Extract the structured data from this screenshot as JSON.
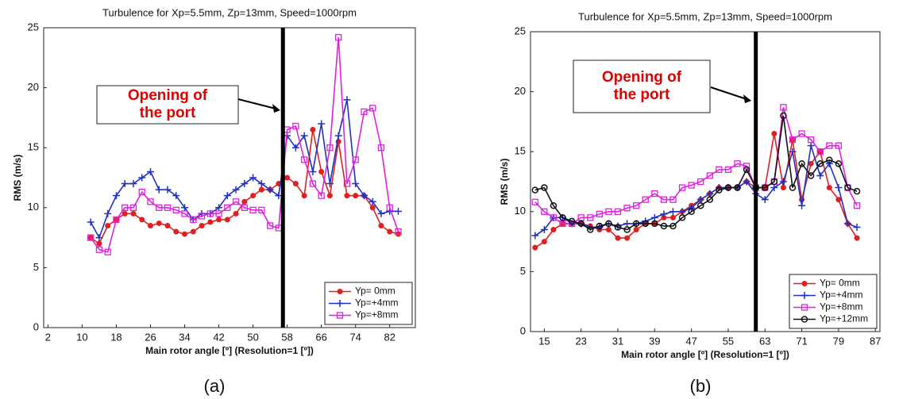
{
  "chart_data": [
    {
      "type": "line",
      "title": "Turbulence for Xp=5.5mm, Zp=13mm, Speed=1000rpm",
      "xlabel": "Main rotor angle [º] (Resolution=1 [º])",
      "ylabel": "RMS (m/s)",
      "caption": "(a)",
      "annotation": [
        "Opening of",
        "the port"
      ],
      "marker_x": 57,
      "xlim": [
        1,
        88
      ],
      "xticks": [
        2,
        10,
        18,
        26,
        34,
        42,
        50,
        58,
        66,
        74,
        82
      ],
      "ylim": [
        0,
        25
      ],
      "yticks": [
        0,
        5,
        10,
        15,
        20,
        25
      ],
      "legend": "lower right",
      "x": [
        12,
        14,
        16,
        18,
        20,
        22,
        24,
        26,
        28,
        30,
        32,
        34,
        36,
        38,
        40,
        42,
        44,
        46,
        48,
        50,
        52,
        54,
        56,
        58,
        60,
        62,
        64,
        66,
        68,
        70,
        72,
        74,
        76,
        78,
        80,
        82,
        84
      ],
      "series": [
        {
          "name": "Yp= 0mm",
          "color": "#e02020",
          "marker": "dot",
          "values": [
            7.5,
            7,
            8.5,
            9,
            9.5,
            9.5,
            9,
            8.5,
            8.7,
            8.5,
            8,
            7.8,
            8,
            8.5,
            8.8,
            9,
            9,
            9.5,
            10.5,
            11,
            11.5,
            11.5,
            12,
            12.5,
            12,
            11,
            16.5,
            13,
            11,
            15.5,
            11,
            11,
            11,
            10,
            8.5,
            8,
            7.8
          ]
        },
        {
          "name": "Yp=+4mm",
          "color": "#2030c0",
          "marker": "plus",
          "values": [
            8.8,
            7.5,
            9.5,
            11,
            12,
            12,
            12.5,
            13,
            11.5,
            11.5,
            11,
            10,
            9,
            9.5,
            9.5,
            10,
            11,
            11.5,
            12,
            12.5,
            12,
            11.5,
            11,
            16,
            15,
            16,
            13,
            17,
            12,
            16,
            19,
            12,
            11,
            10.5,
            9.5,
            9.7,
            9.7
          ]
        },
        {
          "name": "Yp=+8mm",
          "color": "#e020e0",
          "marker": "square",
          "values": [
            7.5,
            6.5,
            6.3,
            9,
            10,
            10,
            11.3,
            10.5,
            10,
            10,
            9.8,
            9.5,
            9,
            9.3,
            9.5,
            9.5,
            10,
            10.5,
            10,
            9.8,
            9.8,
            8.5,
            8.3,
            16.5,
            16.8,
            14,
            12,
            11,
            15,
            24.2,
            12,
            14,
            18,
            18.3,
            15,
            10,
            8
          ]
        }
      ]
    },
    {
      "type": "line",
      "title": "Turbulence for Xp=5.5mm, Zp=13mm, Speed=1000rpm",
      "xlabel": "Main rotor angle [º] (Resolution=1 [º])",
      "ylabel": "RMS (m/s)",
      "caption": "(b)",
      "annotation": [
        "Opening of",
        "the port"
      ],
      "marker_x": 61,
      "xlim": [
        12,
        88
      ],
      "xticks": [
        15,
        23,
        31,
        39,
        47,
        55,
        63,
        71,
        79,
        87
      ],
      "ylim": [
        0,
        25
      ],
      "yticks": [
        0,
        5,
        10,
        15,
        20,
        25
      ],
      "legend": "lower right",
      "x": [
        13,
        15,
        17,
        19,
        21,
        23,
        25,
        27,
        29,
        31,
        33,
        35,
        37,
        39,
        41,
        43,
        45,
        47,
        49,
        51,
        53,
        55,
        57,
        59,
        61,
        63,
        65,
        67,
        69,
        71,
        73,
        75,
        77,
        79,
        81,
        83
      ],
      "series": [
        {
          "name": "Yp= 0mm",
          "color": "#e02020",
          "marker": "dot",
          "values": [
            7,
            7.5,
            8.5,
            9,
            9,
            9,
            8.8,
            8.5,
            8.5,
            7.8,
            7.8,
            8.5,
            9,
            9,
            9.5,
            9.5,
            10,
            10.5,
            11,
            11.5,
            12,
            12,
            12,
            12.5,
            12,
            12,
            16.5,
            12,
            16,
            11,
            14,
            15,
            12,
            11,
            9,
            7.8
          ]
        },
        {
          "name": "Yp=+4mm",
          "color": "#2030c0",
          "marker": "plus",
          "values": [
            8,
            8.5,
            9.5,
            9.5,
            9,
            9,
            8.7,
            8.7,
            9,
            8.8,
            9,
            9,
            9.2,
            9.5,
            9.8,
            10,
            10,
            10.3,
            11,
            11.5,
            12,
            12,
            12,
            12.5,
            11.5,
            11,
            12,
            12.5,
            15,
            10.5,
            15.5,
            13,
            14,
            12,
            9,
            8.7
          ]
        },
        {
          "name": "Yp=+8mm",
          "color": "#e020e0",
          "marker": "square",
          "values": [
            10.8,
            10,
            9.5,
            9,
            9,
            9.5,
            9.5,
            9.8,
            10,
            10,
            10.3,
            10.5,
            11,
            11.5,
            11,
            11,
            12,
            12.2,
            12.5,
            13,
            13.5,
            13.5,
            14,
            13.8,
            12,
            12,
            12.5,
            18.7,
            16,
            16.5,
            16,
            15,
            15.5,
            15.5,
            12,
            10.5
          ]
        },
        {
          "name": "Yp=+12mm",
          "color": "#111111",
          "marker": "circle",
          "values": [
            11.8,
            12,
            10.5,
            9.5,
            9.2,
            9,
            8.5,
            8.8,
            9,
            8.7,
            8.5,
            9,
            9,
            9,
            8.8,
            8.8,
            9.5,
            10,
            10.5,
            11,
            11.8,
            12,
            12,
            13.5,
            12,
            12,
            12.5,
            18,
            12,
            14,
            13,
            14,
            14.3,
            14,
            12,
            11.7
          ]
        }
      ]
    }
  ]
}
